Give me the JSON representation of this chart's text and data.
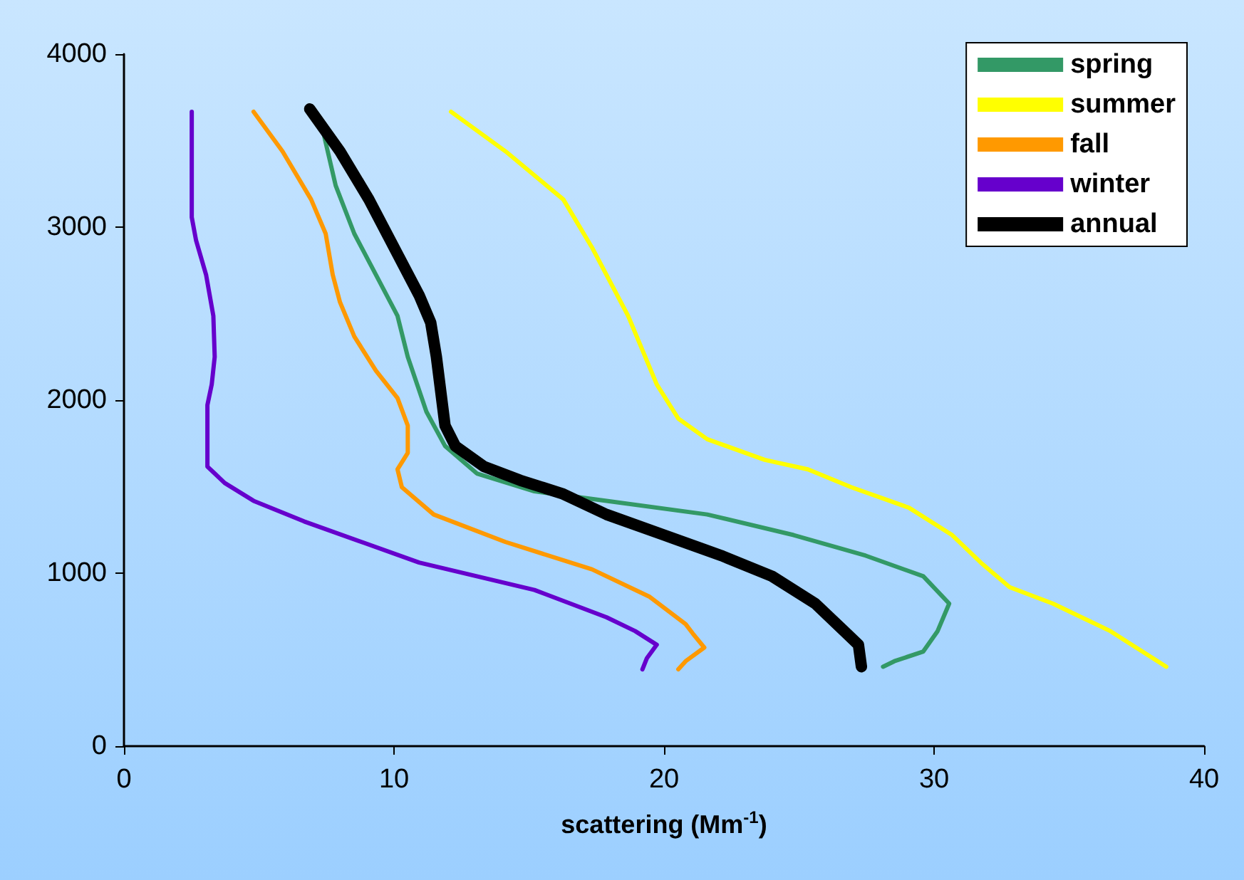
{
  "chart_data": {
    "type": "line",
    "xlabel": "scattering (Mm$^{-1}$)",
    "xlim": [
      0,
      40
    ],
    "xticks": [
      0,
      10,
      20,
      30,
      40
    ],
    "ylim": [
      0,
      4000
    ],
    "yticks": [
      0,
      1000,
      2000,
      3000,
      4000
    ],
    "grid": false,
    "legend": "top right",
    "marker": "none",
    "line_style": "solid",
    "series": [
      {
        "name": "spring",
        "color": "#339966",
        "x": [
          7.31,
          7.84,
          8.53,
          9.33,
          10.13,
          10.51,
          10.77,
          11.2,
          11.89,
          13.07,
          15.2,
          17.87,
          21.6,
          24.8,
          27.47,
          29.6,
          30.56,
          30.13,
          29.6,
          28.53,
          28.11
        ],
        "values": [
          3596,
          3240,
          2962,
          2725,
          2487,
          2250,
          2131,
          1933,
          1735,
          1576,
          1473,
          1418,
          1339,
          1220,
          1101,
          982,
          824,
          665,
          547,
          491,
          459
        ]
      },
      {
        "name": "summer",
        "color": "#ffff00",
        "x": [
          12.11,
          14.13,
          16.27,
          17.33,
          18.67,
          19.73,
          20.53,
          21.6,
          23.73,
          25.33,
          26.93,
          29.07,
          30.67,
          31.73,
          32.8,
          34.4,
          36.53,
          38.6
        ],
        "values": [
          3667,
          3438,
          3160,
          2883,
          2487,
          2091,
          1893,
          1774,
          1655,
          1600,
          1497,
          1378,
          1220,
          1061,
          919,
          824,
          665,
          459
        ]
      },
      {
        "name": "fall",
        "color": "#ff9900",
        "x": [
          4.8,
          5.87,
          6.93,
          7.47,
          7.73,
          8.0,
          8.53,
          9.33,
          10.13,
          10.51,
          10.51,
          10.13,
          10.29,
          11.47,
          14.13,
          17.33,
          19.47,
          20.8,
          21.07,
          21.49,
          20.8,
          20.53
        ],
        "values": [
          3667,
          3438,
          3160,
          2962,
          2725,
          2566,
          2368,
          2170,
          2012,
          1853,
          1695,
          1600,
          1497,
          1339,
          1180,
          1022,
          863,
          705,
          650,
          570,
          491,
          444
        ]
      },
      {
        "name": "winter",
        "color": "#6600cc",
        "x": [
          2.51,
          2.51,
          2.67,
          3.04,
          3.31,
          3.36,
          3.25,
          3.09,
          3.09,
          3.09,
          3.36,
          3.73,
          4.8,
          6.67,
          10.93,
          15.2,
          17.87,
          18.93,
          19.73,
          19.36,
          19.2
        ],
        "values": [
          3667,
          3057,
          2923,
          2725,
          2487,
          2250,
          2091,
          1972,
          1774,
          1616,
          1576,
          1521,
          1418,
          1299,
          1061,
          903,
          745,
          665,
          586,
          507,
          444
        ]
      },
      {
        "name": "annual",
        "color": "#000000",
        "x": [
          6.88,
          8.0,
          9.07,
          10.13,
          10.93,
          11.36,
          11.57,
          11.73,
          11.89,
          12.27,
          13.33,
          14.67,
          16.27,
          17.87,
          20.0,
          22.13,
          24.0,
          25.6,
          26.67,
          27.2,
          27.31
        ],
        "values": [
          3683,
          3438,
          3160,
          2844,
          2606,
          2448,
          2250,
          2051,
          1853,
          1735,
          1616,
          1537,
          1457,
          1339,
          1220,
          1101,
          982,
          824,
          665,
          586,
          459
        ]
      }
    ]
  }
}
